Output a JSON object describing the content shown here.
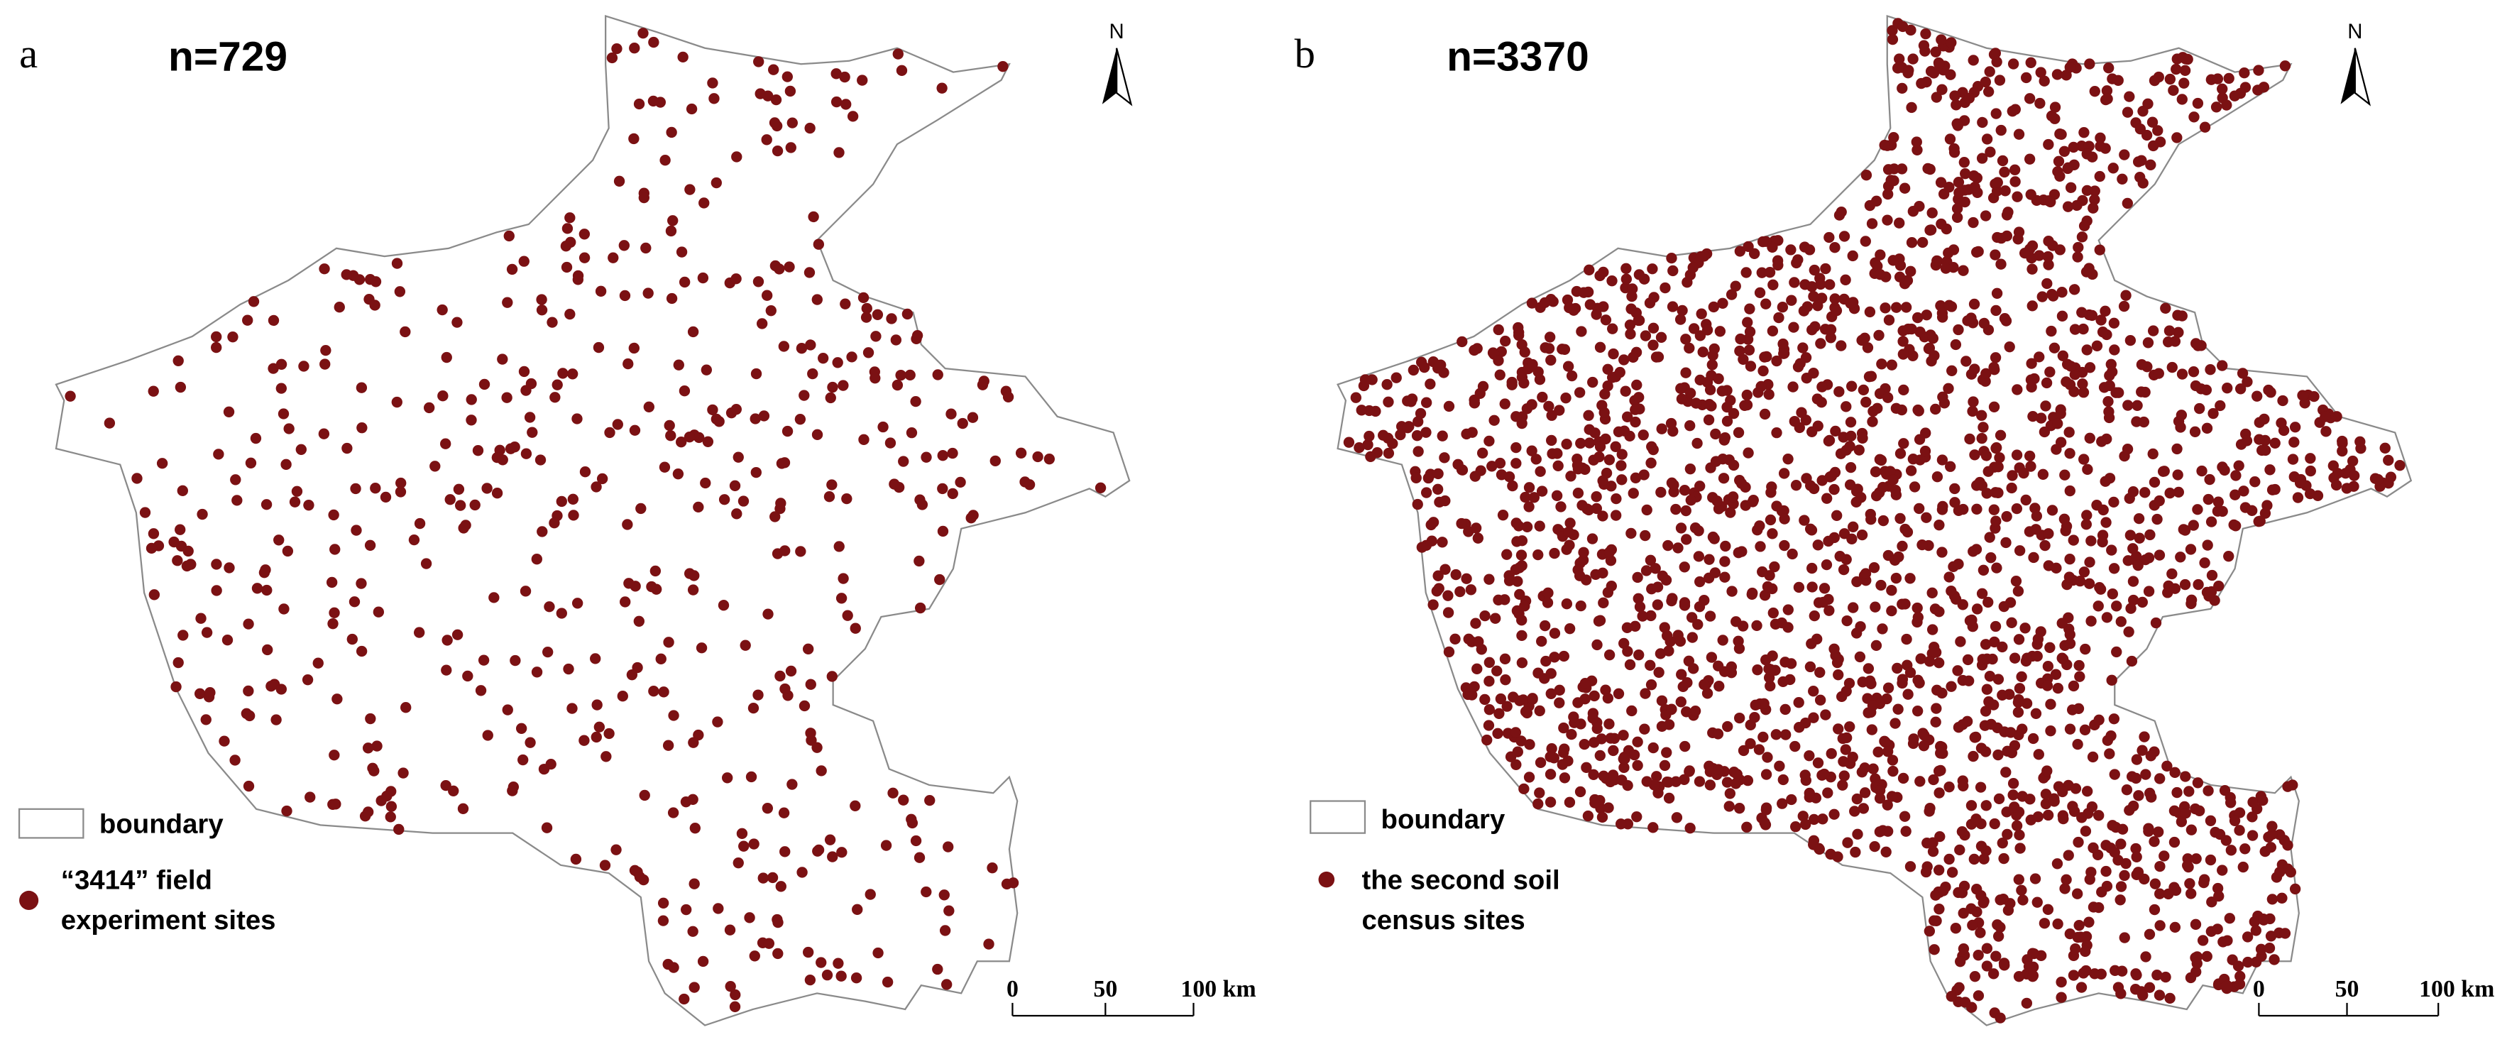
{
  "panels": [
    {
      "label": "a",
      "count_text": "n=729",
      "north": "N",
      "legend": {
        "boundary": "boundary",
        "sites": [
          "“3414”  field",
          "experiment sites"
        ]
      },
      "scale": [
        "0",
        "50",
        "100 km"
      ]
    },
    {
      "label": "b",
      "count_text": "n=3370",
      "north": "N",
      "legend": {
        "boundary": "boundary",
        "sites": [
          "the second soil",
          "census sites"
        ]
      },
      "scale": [
        "0",
        "50",
        "100 km"
      ]
    }
  ]
}
